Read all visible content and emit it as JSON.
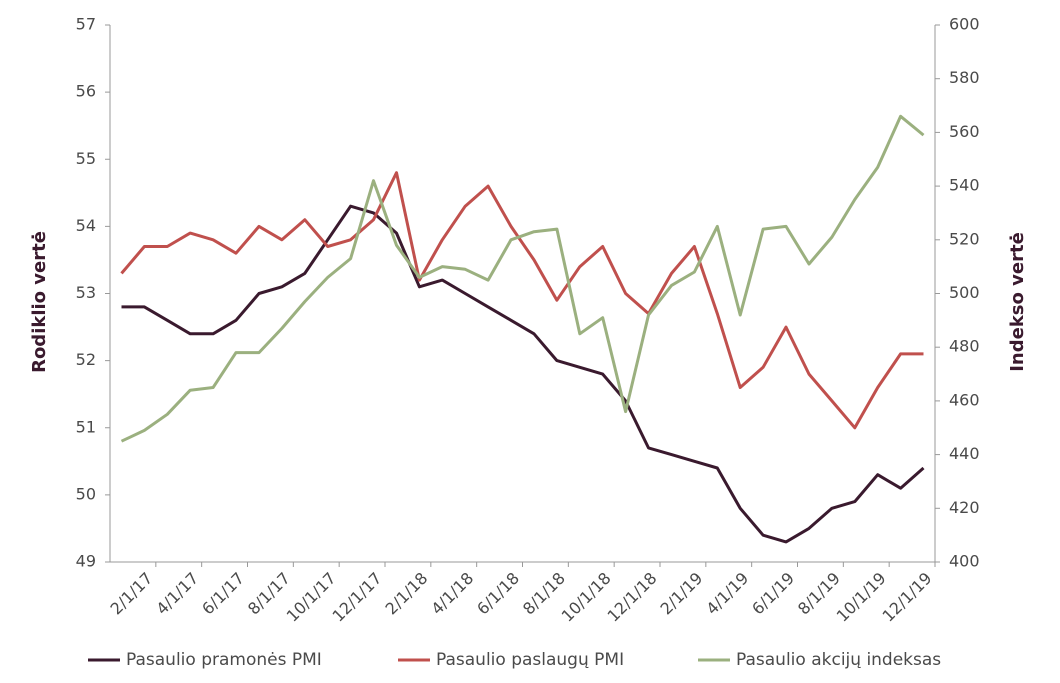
{
  "chart_data": {
    "type": "line",
    "categories": [
      null,
      "2/1/17",
      null,
      "4/1/17",
      null,
      "6/1/17",
      null,
      "8/1/17",
      null,
      "10/1/17",
      null,
      "12/1/17",
      null,
      "2/1/18",
      null,
      "4/1/18",
      null,
      "6/1/18",
      null,
      "8/1/18",
      null,
      "10/1/18",
      null,
      "12/1/18",
      null,
      "2/1/19",
      null,
      "4/1/19",
      null,
      "6/1/19",
      null,
      "8/1/19",
      null,
      "10/1/19",
      null,
      "12/1/19"
    ],
    "series": [
      {
        "name": "Pasaulio pramonės PMI",
        "color": "#3a1a2e",
        "values": [
          52.8,
          52.8,
          52.6,
          52.4,
          52.4,
          52.6,
          53.0,
          53.1,
          53.3,
          53.8,
          54.3,
          54.2,
          53.9,
          53.1,
          53.2,
          53.0,
          52.8,
          52.6,
          52.4,
          52.0,
          51.9,
          51.8,
          51.4,
          50.7,
          50.6,
          50.5,
          50.4,
          49.8,
          49.4,
          49.3,
          49.5,
          49.8,
          49.9,
          50.3,
          50.1,
          50.4
        ]
      },
      {
        "name": "Pasaulio paslaugų PMI",
        "color": "#c0504d",
        "values": [
          53.3,
          53.7,
          53.7,
          53.9,
          53.8,
          53.6,
          54.0,
          53.8,
          54.1,
          53.7,
          53.8,
          54.1,
          54.8,
          53.2,
          53.8,
          54.3,
          54.6,
          54.0,
          53.5,
          52.9,
          53.4,
          53.7,
          53.0,
          52.7,
          53.3,
          53.7,
          52.7,
          51.6,
          51.9,
          52.5,
          51.8,
          51.4,
          51.0,
          51.6,
          52.1,
          52.1
        ]
      },
      {
        "name": "Pasaulio akcijų indeksas",
        "color": "#9bb07f",
        "axis": "y2",
        "values": [
          445,
          449,
          455,
          464,
          465,
          478,
          478,
          487,
          497,
          506,
          513,
          542,
          518,
          506,
          510,
          509,
          505,
          520,
          523,
          524,
          485,
          491,
          456,
          492,
          503,
          508,
          525,
          492,
          524,
          525,
          511,
          521,
          535,
          547,
          566,
          559
        ]
      }
    ],
    "ylabel": "Rodiklio vertė",
    "y2label": "Indekso vertė",
    "ylim": [
      49,
      57
    ],
    "yticks": [
      49,
      50,
      51,
      52,
      53,
      54,
      55,
      56,
      57
    ],
    "y2lim": [
      400,
      600
    ],
    "y2ticks": [
      400,
      420,
      440,
      460,
      480,
      500,
      520,
      540,
      560,
      580,
      600
    ]
  }
}
